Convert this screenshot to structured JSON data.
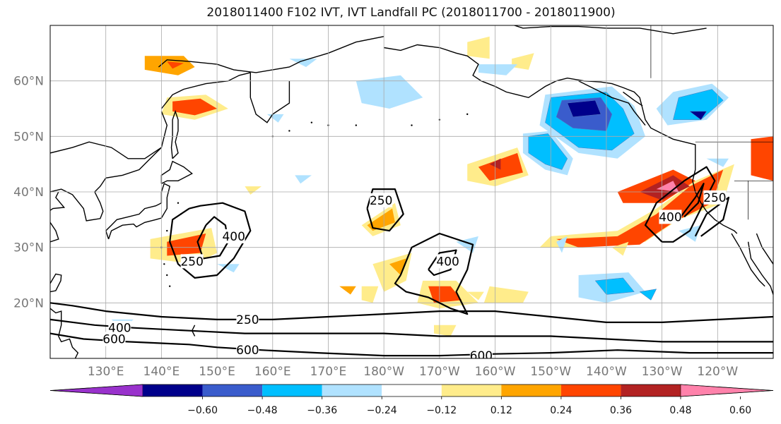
{
  "title": "2018011400 F102 IVT, IVT Landfall PC (2018011700 - 2018011900)",
  "map": {
    "projection": "PlateCarree",
    "lon_range": [
      120,
      250
    ],
    "lat_range": [
      10,
      70
    ],
    "grid": true,
    "lat_ticks": [
      {
        "label": "60°N",
        "lat": 60
      },
      {
        "label": "50°N",
        "lat": 50
      },
      {
        "label": "40°N",
        "lat": 40
      },
      {
        "label": "30°N",
        "lat": 30
      },
      {
        "label": "20°N",
        "lat": 20
      }
    ],
    "lon_ticks": [
      {
        "label": "130°E",
        "lon": 130
      },
      {
        "label": "140°E",
        "lon": 140
      },
      {
        "label": "150°E",
        "lon": 150
      },
      {
        "label": "160°E",
        "lon": 160
      },
      {
        "label": "170°E",
        "lon": 170
      },
      {
        "label": "180°W",
        "lon": 180
      },
      {
        "label": "170°W",
        "lon": 190
      },
      {
        "label": "160°W",
        "lon": 200
      },
      {
        "label": "150°W",
        "lon": 210
      },
      {
        "label": "140°W",
        "lon": 220
      },
      {
        "label": "130°W",
        "lon": 230
      },
      {
        "label": "120°W",
        "lon": 240
      }
    ]
  },
  "ivt_contours": {
    "levels": [
      250,
      400,
      600
    ],
    "labels": [
      {
        "text": "250",
        "lon": 155.5,
        "lat": 17.0
      },
      {
        "text": "400",
        "lon": 132.5,
        "lat": 15.5
      },
      {
        "text": "600",
        "lon": 131.5,
        "lat": 13.5
      },
      {
        "text": "600",
        "lon": 155.5,
        "lat": 11.5
      },
      {
        "text": "600",
        "lon": 197.5,
        "lat": 10.5
      },
      {
        "text": "250",
        "lon": 145.5,
        "lat": 27.5
      },
      {
        "text": "400",
        "lon": 153.0,
        "lat": 32.0
      },
      {
        "text": "250",
        "lon": 179.5,
        "lat": 38.5
      },
      {
        "text": "400",
        "lon": 191.5,
        "lat": 27.5
      },
      {
        "text": "400",
        "lon": 231.5,
        "lat": 35.5
      },
      {
        "text": "250",
        "lon": 239.5,
        "lat": 39.0
      }
    ]
  },
  "colorbar": {
    "colors": [
      "#9932cc",
      "#00008b",
      "#3a5ccc",
      "#00bfff",
      "#b0e2ff",
      "#ffffff",
      "#ffec8b",
      "#ffa500",
      "#ff4500",
      "#b22222",
      "#ff82ab"
    ],
    "tick_labels": [
      "−0.60",
      "−0.48",
      "−0.36",
      "−0.24",
      "−0.12",
      "0.12",
      "0.24",
      "0.36",
      "0.48",
      "0.60"
    ],
    "extend": "both"
  },
  "chart_data": {
    "type": "heatmap",
    "title": "2018011400 F102 IVT, IVT Landfall PC (2018011700 - 2018011900)",
    "xlim": [
      120,
      250
    ],
    "ylim": [
      10,
      70
    ],
    "x_tick_labels": [
      "130°E",
      "140°E",
      "150°E",
      "160°E",
      "170°E",
      "180°W",
      "170°W",
      "160°W",
      "150°W",
      "140°W",
      "130°W",
      "120°W"
    ],
    "y_tick_labels": [
      "60°N",
      "50°N",
      "40°N",
      "30°N",
      "20°N"
    ],
    "contour_levels": [
      250,
      400,
      600
    ],
    "colorbar_levels": [
      -0.6,
      -0.48,
      -0.36,
      -0.24,
      -0.12,
      0.12,
      0.24,
      0.36,
      0.48,
      0.6
    ],
    "grid": true
  }
}
